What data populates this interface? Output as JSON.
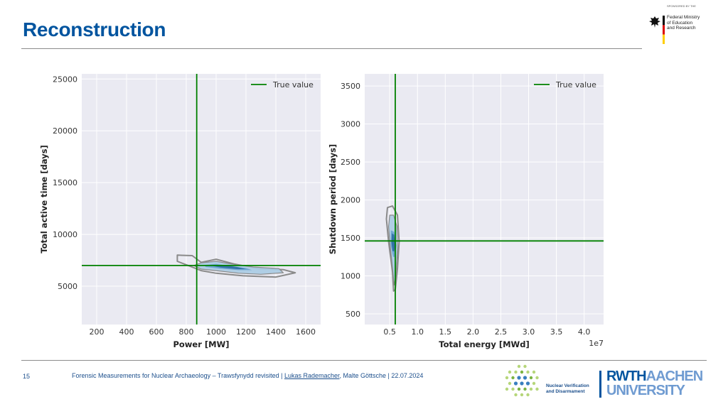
{
  "slide": {
    "title": "Reconstruction",
    "sponsor": {
      "label": "SPONSORED BY THE",
      "lines": [
        "Federal Ministry",
        "of Education",
        "and Research"
      ]
    },
    "footer": {
      "page_number": "15",
      "text_before": "Forensic Measurements for Nuclear Archaeology – Trawsfynydd revisited  |  ",
      "author_link": "Lukas Rademacher",
      "text_after": ", Malte Göttsche  |  22.07.2024"
    },
    "nvd_logo": {
      "lines": [
        "Nuclear Verification",
        "and Disarmament"
      ]
    },
    "rwth_logo": {
      "line1_dark": "RWTH",
      "line1_light": "AACHEN",
      "line2": "UNIVERSITY"
    }
  },
  "colors": {
    "title": "#00549f",
    "plot_bg": "#eaeaf2",
    "grid": "#ffffff",
    "true_value_line": "#008000",
    "contour_outer": "#8a8a8a",
    "kde_light": "#a9cbe3",
    "kde_mid": "#6aa3cf",
    "kde_dark": "#2f6fa3"
  },
  "chart_data": [
    {
      "type": "contour",
      "xlabel": "Power [MW]",
      "ylabel": "Total active time [days]",
      "xlim": [
        100,
        1700
      ],
      "ylim": [
        1300,
        25500
      ],
      "xticks": [
        200,
        400,
        600,
        800,
        1000,
        1200,
        1400,
        1600
      ],
      "yticks": [
        5000,
        10000,
        15000,
        20000,
        25000
      ],
      "grid": true,
      "legend": {
        "position": "top-right",
        "entries": [
          "True value"
        ]
      },
      "true_value": {
        "x": 870,
        "y": 7000
      },
      "contours": [
        {
          "level": "outer",
          "points": [
            [
              840,
              7950
            ],
            [
              900,
              7300
            ],
            [
              1000,
              7600
            ],
            [
              1120,
              7150
            ],
            [
              1280,
              6700
            ],
            [
              1450,
              6600
            ],
            [
              1530,
              6300
            ],
            [
              1400,
              5880
            ],
            [
              1180,
              6000
            ],
            [
              1000,
              6250
            ],
            [
              900,
              6500
            ],
            [
              830,
              6900
            ],
            [
              740,
              7400
            ],
            [
              740,
              8000
            ]
          ]
        },
        {
          "level": "light",
          "points": [
            [
              850,
              7000
            ],
            [
              900,
              7250
            ],
            [
              1000,
              7400
            ],
            [
              1100,
              7150
            ],
            [
              1250,
              6850
            ],
            [
              1420,
              6700
            ],
            [
              1450,
              6300
            ],
            [
              1300,
              6150
            ],
            [
              1150,
              6250
            ],
            [
              1000,
              6500
            ],
            [
              900,
              6650
            ]
          ]
        },
        {
          "level": "mid",
          "points": [
            [
              920,
              7050
            ],
            [
              1000,
              7150
            ],
            [
              1100,
              6950
            ],
            [
              1200,
              6750
            ],
            [
              1240,
              6550
            ],
            [
              1150,
              6550
            ],
            [
              1020,
              6700
            ],
            [
              930,
              6850
            ]
          ]
        },
        {
          "level": "dark",
          "points": [
            [
              960,
              7000
            ],
            [
              1040,
              7050
            ],
            [
              1140,
              6850
            ],
            [
              1200,
              6650
            ],
            [
              1140,
              6650
            ],
            [
              1030,
              6800
            ]
          ]
        }
      ]
    },
    {
      "type": "contour",
      "xlabel": "Total energy [MWd]",
      "ylabel": "Shutdown period [days]",
      "x_offset_label": "1e7",
      "xlim": [
        0.05,
        4.35
      ],
      "ylim": [
        360,
        3660
      ],
      "xticks": [
        0.5,
        1.0,
        1.5,
        2.0,
        2.5,
        3.0,
        3.5,
        4.0
      ],
      "yticks": [
        500,
        1000,
        1500,
        2000,
        2500,
        3000,
        3500
      ],
      "grid": true,
      "legend": {
        "position": "top-right",
        "entries": [
          "True value"
        ]
      },
      "true_value": {
        "x": 0.6,
        "y": 1460
      },
      "contours": [
        {
          "level": "outer",
          "points": [
            [
              0.46,
              1900
            ],
            [
              0.55,
              1920
            ],
            [
              0.64,
              1800
            ],
            [
              0.67,
              1450
            ],
            [
              0.64,
              1100
            ],
            [
              0.6,
              820
            ],
            [
              0.57,
              800
            ],
            [
              0.55,
              1050
            ],
            [
              0.48,
              1450
            ],
            [
              0.44,
              1750
            ]
          ]
        },
        {
          "level": "light",
          "points": [
            [
              0.5,
              1800
            ],
            [
              0.57,
              1800
            ],
            [
              0.63,
              1650
            ],
            [
              0.64,
              1350
            ],
            [
              0.61,
              1000
            ],
            [
              0.58,
              880
            ],
            [
              0.55,
              1100
            ],
            [
              0.5,
              1450
            ],
            [
              0.48,
              1650
            ]
          ]
        },
        {
          "level": "mid",
          "points": [
            [
              0.52,
              1600
            ],
            [
              0.58,
              1580
            ],
            [
              0.62,
              1400
            ],
            [
              0.6,
              1250
            ],
            [
              0.56,
              1250
            ],
            [
              0.52,
              1400
            ]
          ]
        },
        {
          "level": "dark",
          "points": [
            [
              0.54,
              1560
            ],
            [
              0.58,
              1540
            ],
            [
              0.6,
              1400
            ],
            [
              0.58,
              1320
            ],
            [
              0.55,
              1330
            ],
            [
              0.53,
              1440
            ]
          ]
        }
      ]
    }
  ]
}
